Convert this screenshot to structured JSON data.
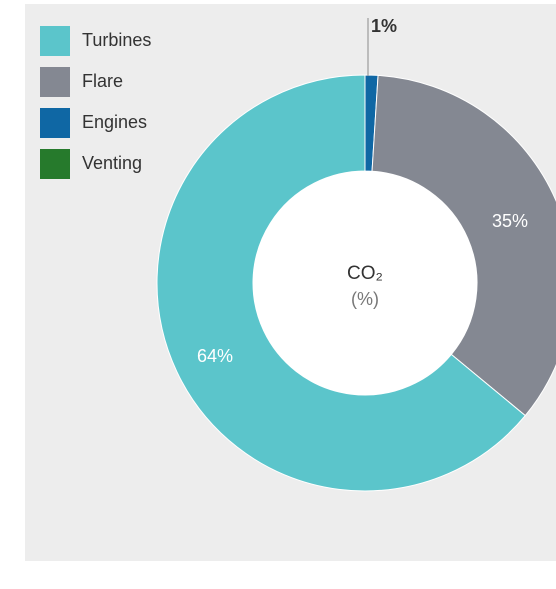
{
  "chart_data": {
    "type": "pie",
    "donut": true,
    "title": "",
    "center_label": "CO₂",
    "center_sublabel": "(%)",
    "legend_placement": "top-left",
    "slices": [
      {
        "name": "Engines",
        "value": 1,
        "label": "1%",
        "color": "#0f67a4"
      },
      {
        "name": "Flare",
        "value": 35,
        "label": "35%",
        "color": "#848892"
      },
      {
        "name": "Turbines",
        "value": 64,
        "label": "64%",
        "color": "#5bc5cb"
      },
      {
        "name": "Venting",
        "value": 0,
        "label": "",
        "color": "#267a2c"
      }
    ],
    "legend": [
      {
        "name": "Turbines",
        "color": "#5bc5cb"
      },
      {
        "name": "Flare",
        "color": "#848892"
      },
      {
        "name": "Engines",
        "color": "#0f67a4"
      },
      {
        "name": "Venting",
        "color": "#267a2c"
      }
    ]
  }
}
